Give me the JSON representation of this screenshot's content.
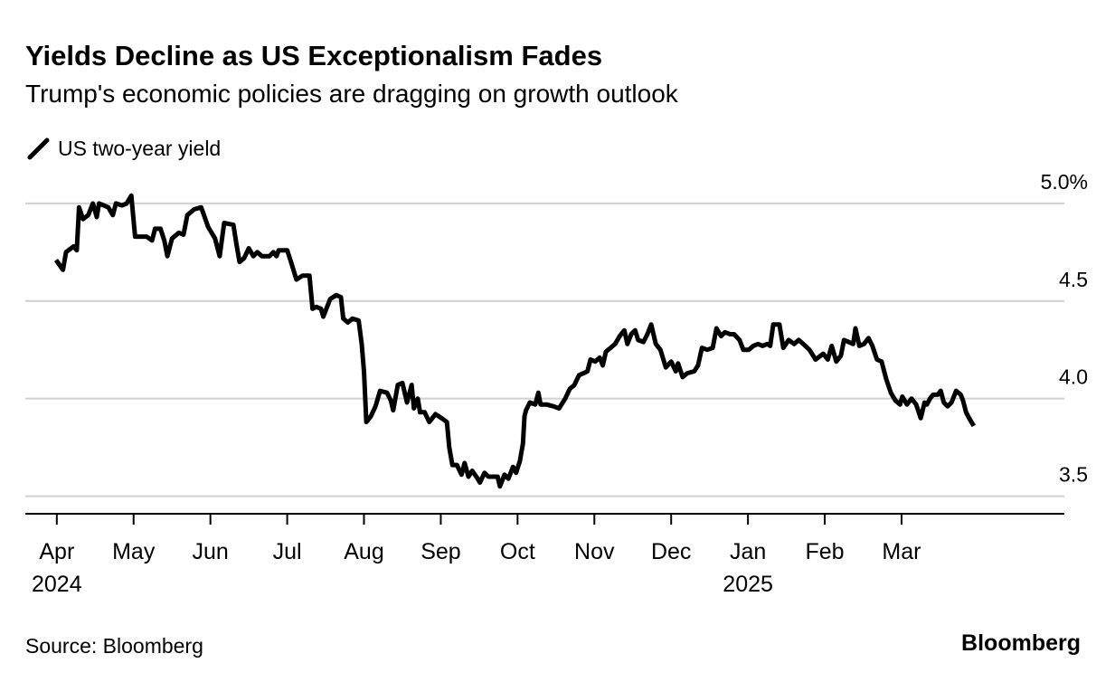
{
  "chart_data": {
    "type": "line",
    "title": "Yields Decline as US Exceptionalism Fades",
    "subtitle": "Trump's economic policies are dragging on growth outlook",
    "source": "Source: Bloomberg",
    "logo": "Bloomberg",
    "x": [
      -0.01,
      0.08,
      0.12,
      0.22,
      0.26,
      0.29,
      0.34,
      0.41,
      0.47,
      0.52,
      0.55,
      0.67,
      0.73,
      0.77,
      0.85,
      0.91,
      0.97,
      1.02,
      1.08,
      1.17,
      1.24,
      1.28,
      1.35,
      1.4,
      1.44,
      1.5,
      1.59,
      1.65,
      1.7,
      1.79,
      1.88,
      1.97,
      2.06,
      2.12,
      2.18,
      2.3,
      2.34,
      2.38,
      2.44,
      2.5,
      2.56,
      2.61,
      2.67,
      2.77,
      2.82,
      2.86,
      2.89,
      3.0,
      3.05,
      3.12,
      3.2,
      3.29,
      3.33,
      3.38,
      3.44,
      3.47,
      3.56,
      3.64,
      3.7,
      3.73,
      3.79,
      3.85,
      3.93,
      3.97,
      4.0,
      4.03,
      4.09,
      4.15,
      4.21,
      4.3,
      4.35,
      4.38,
      4.44,
      4.5,
      4.56,
      4.62,
      4.65,
      4.7,
      4.73,
      4.79,
      4.85,
      4.93,
      5.01,
      5.08,
      5.11,
      5.15,
      5.21,
      5.27,
      5.31,
      5.36,
      5.41,
      5.48,
      5.51,
      5.57,
      5.62,
      5.68,
      5.74,
      5.77,
      5.83,
      5.88,
      5.94,
      5.98,
      6.03,
      6.07,
      6.09,
      6.11,
      6.16,
      6.23,
      6.27,
      6.3,
      6.38,
      6.47,
      6.54,
      6.62,
      6.68,
      6.74,
      6.8,
      6.86,
      6.91,
      6.95,
      7.01,
      7.07,
      7.11,
      7.15,
      7.21,
      7.27,
      7.33,
      7.39,
      7.43,
      7.48,
      7.53,
      7.57,
      7.64,
      7.69,
      7.74,
      7.8,
      7.86,
      7.93,
      8.0,
      8.06,
      8.09,
      8.15,
      8.21,
      8.3,
      8.35,
      8.4,
      8.47,
      8.54,
      8.59,
      8.65,
      8.7,
      8.77,
      8.82,
      8.89,
      8.94,
      9.01,
      9.07,
      9.13,
      9.19,
      9.25,
      9.29,
      9.33,
      9.41,
      9.46,
      9.53,
      9.6,
      9.66,
      9.72,
      9.8,
      9.88,
      9.98,
      10.04,
      10.09,
      10.15,
      10.21,
      10.25,
      10.31,
      10.37,
      10.4,
      10.45,
      10.51,
      10.57,
      10.62,
      10.68,
      10.74,
      10.8,
      10.86,
      10.92,
      10.98,
      11.01,
      11.07,
      11.13,
      11.19,
      11.25,
      11.3,
      11.33,
      11.37,
      11.41,
      11.47,
      11.51,
      11.55,
      11.6,
      11.65,
      11.71,
      11.77,
      11.8,
      11.84,
      11.88,
      11.94
    ],
    "series": [
      {
        "name": "US two-year yield",
        "color": "#000000",
        "values": [
          4.71,
          4.66,
          4.75,
          4.78,
          4.76,
          4.98,
          4.92,
          4.94,
          5.0,
          4.93,
          5.0,
          4.98,
          4.94,
          5.0,
          4.99,
          5.0,
          5.04,
          4.83,
          4.83,
          4.83,
          4.81,
          4.87,
          4.87,
          4.81,
          4.73,
          4.82,
          4.85,
          4.84,
          4.94,
          4.97,
          4.98,
          4.88,
          4.82,
          4.73,
          4.9,
          4.89,
          4.79,
          4.7,
          4.72,
          4.77,
          4.73,
          4.75,
          4.73,
          4.73,
          4.75,
          4.73,
          4.76,
          4.76,
          4.7,
          4.61,
          4.63,
          4.63,
          4.46,
          4.47,
          4.46,
          4.42,
          4.51,
          4.53,
          4.52,
          4.41,
          4.39,
          4.41,
          4.4,
          4.28,
          4.14,
          3.88,
          3.91,
          3.96,
          4.04,
          4.03,
          3.99,
          3.94,
          4.07,
          4.08,
          3.98,
          4.07,
          3.95,
          4.0,
          3.93,
          3.93,
          3.88,
          3.92,
          3.9,
          3.88,
          3.75,
          3.66,
          3.66,
          3.61,
          3.67,
          3.6,
          3.63,
          3.59,
          3.57,
          3.62,
          3.6,
          3.6,
          3.6,
          3.55,
          3.61,
          3.59,
          3.65,
          3.62,
          3.68,
          3.77,
          3.91,
          3.94,
          3.98,
          3.97,
          4.03,
          3.97,
          3.97,
          3.96,
          3.95,
          4.0,
          4.05,
          4.07,
          4.12,
          4.13,
          4.14,
          4.2,
          4.19,
          4.21,
          4.17,
          4.24,
          4.26,
          4.28,
          4.32,
          4.35,
          4.28,
          4.33,
          4.35,
          4.3,
          4.29,
          4.33,
          4.38,
          4.28,
          4.25,
          4.16,
          4.19,
          4.14,
          4.18,
          4.11,
          4.13,
          4.14,
          4.17,
          4.26,
          4.25,
          4.26,
          4.36,
          4.32,
          4.34,
          4.33,
          4.33,
          4.3,
          4.25,
          4.25,
          4.27,
          4.28,
          4.27,
          4.28,
          4.27,
          4.38,
          4.38,
          4.26,
          4.3,
          4.28,
          4.3,
          4.28,
          4.25,
          4.2,
          4.23,
          4.2,
          4.27,
          4.19,
          4.22,
          4.3,
          4.29,
          4.28,
          4.36,
          4.27,
          4.28,
          4.31,
          4.27,
          4.2,
          4.19,
          4.1,
          4.03,
          3.99,
          3.97,
          4.01,
          3.97,
          4.0,
          3.97,
          3.9,
          3.98,
          3.97,
          4.0,
          4.02,
          4.02,
          4.04,
          3.98,
          3.96,
          3.98,
          4.04,
          4.02,
          3.99,
          3.93,
          3.9,
          3.86
        ]
      }
    ],
    "xlim": [
      -0.41,
      13.12
    ],
    "xticks": [
      {
        "value": 0,
        "label": "Apr"
      },
      {
        "value": 1,
        "label": "May"
      },
      {
        "value": 2,
        "label": "Jun"
      },
      {
        "value": 3,
        "label": "Jul"
      },
      {
        "value": 4,
        "label": "Aug"
      },
      {
        "value": 5,
        "label": "Sep"
      },
      {
        "value": 6,
        "label": "Oct"
      },
      {
        "value": 7,
        "label": "Nov"
      },
      {
        "value": 8,
        "label": "Dec"
      },
      {
        "value": 9,
        "label": "Jan"
      },
      {
        "value": 10,
        "label": "Feb"
      },
      {
        "value": 11,
        "label": "Mar"
      }
    ],
    "x_year_labels": [
      {
        "value": 0,
        "label": "2024"
      },
      {
        "value": 9,
        "label": "2025"
      }
    ],
    "ylim": [
      3.41,
      5.12
    ],
    "yticks": [
      {
        "value": 5,
        "label": "5.0%"
      },
      4.5,
      {
        "value": 4,
        "label": "4.0"
      },
      3.5
    ],
    "grid": true
  }
}
